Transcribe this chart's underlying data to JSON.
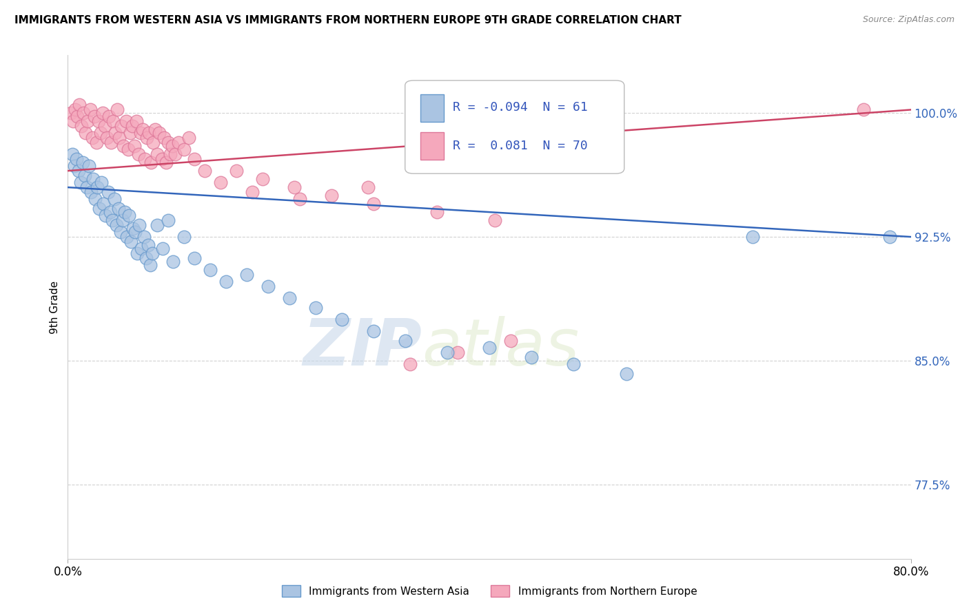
{
  "title": "IMMIGRANTS FROM WESTERN ASIA VS IMMIGRANTS FROM NORTHERN EUROPE 9TH GRADE CORRELATION CHART",
  "source": "Source: ZipAtlas.com",
  "ylabel": "9th Grade",
  "ytick_values": [
    77.5,
    85.0,
    92.5,
    100.0
  ],
  "xlim": [
    0.0,
    80.0
  ],
  "ylim": [
    73.0,
    103.5
  ],
  "r_blue": -0.094,
  "n_blue": 61,
  "r_pink": 0.081,
  "n_pink": 70,
  "legend_label_blue": "Immigrants from Western Asia",
  "legend_label_pink": "Immigrants from Northern Europe",
  "blue_color": "#aac4e2",
  "pink_color": "#f5a8bc",
  "blue_line_color": "#3366bb",
  "pink_line_color": "#cc4466",
  "blue_edge_color": "#6699cc",
  "pink_edge_color": "#dd7799",
  "watermark_zip": "ZIP",
  "watermark_atlas": "atlas",
  "blue_scatter_x": [
    0.4,
    0.6,
    0.8,
    1.0,
    1.2,
    1.4,
    1.6,
    1.8,
    2.0,
    2.2,
    2.4,
    2.6,
    2.8,
    3.0,
    3.2,
    3.4,
    3.6,
    3.8,
    4.0,
    4.2,
    4.4,
    4.6,
    4.8,
    5.0,
    5.2,
    5.4,
    5.6,
    5.8,
    6.0,
    6.2,
    6.4,
    6.6,
    6.8,
    7.0,
    7.2,
    7.4,
    7.6,
    7.8,
    8.0,
    8.5,
    9.0,
    9.5,
    10.0,
    11.0,
    12.0,
    13.5,
    15.0,
    17.0,
    19.0,
    21.0,
    23.5,
    26.0,
    29.0,
    32.0,
    36.0,
    40.0,
    44.0,
    48.0,
    53.0,
    65.0,
    78.0
  ],
  "blue_scatter_y": [
    97.5,
    96.8,
    97.2,
    96.5,
    95.8,
    97.0,
    96.2,
    95.5,
    96.8,
    95.2,
    96.0,
    94.8,
    95.5,
    94.2,
    95.8,
    94.5,
    93.8,
    95.2,
    94.0,
    93.5,
    94.8,
    93.2,
    94.2,
    92.8,
    93.5,
    94.0,
    92.5,
    93.8,
    92.2,
    93.0,
    92.8,
    91.5,
    93.2,
    91.8,
    92.5,
    91.2,
    92.0,
    90.8,
    91.5,
    93.2,
    91.8,
    93.5,
    91.0,
    92.5,
    91.2,
    90.5,
    89.8,
    90.2,
    89.5,
    88.8,
    88.2,
    87.5,
    86.8,
    86.2,
    85.5,
    85.8,
    85.2,
    84.8,
    84.2,
    92.5,
    92.5
  ],
  "pink_scatter_x": [
    0.3,
    0.5,
    0.7,
    0.9,
    1.1,
    1.3,
    1.5,
    1.7,
    1.9,
    2.1,
    2.3,
    2.5,
    2.7,
    2.9,
    3.1,
    3.3,
    3.5,
    3.7,
    3.9,
    4.1,
    4.3,
    4.5,
    4.7,
    4.9,
    5.1,
    5.3,
    5.5,
    5.7,
    5.9,
    6.1,
    6.3,
    6.5,
    6.7,
    6.9,
    7.1,
    7.3,
    7.5,
    7.7,
    7.9,
    8.1,
    8.3,
    8.5,
    8.7,
    8.9,
    9.1,
    9.3,
    9.5,
    9.7,
    9.9,
    10.2,
    10.5,
    11.0,
    11.5,
    12.0,
    13.0,
    14.5,
    16.0,
    18.5,
    21.5,
    25.0,
    28.5,
    32.5,
    37.0,
    42.0,
    17.5,
    22.0,
    29.0,
    35.0,
    40.5,
    75.5
  ],
  "pink_scatter_y": [
    100.0,
    99.5,
    100.2,
    99.8,
    100.5,
    99.2,
    100.0,
    98.8,
    99.5,
    100.2,
    98.5,
    99.8,
    98.2,
    99.5,
    98.8,
    100.0,
    99.2,
    98.5,
    99.8,
    98.2,
    99.5,
    98.8,
    100.2,
    98.5,
    99.2,
    98.0,
    99.5,
    97.8,
    98.8,
    99.2,
    98.0,
    99.5,
    97.5,
    98.8,
    99.0,
    97.2,
    98.5,
    98.8,
    97.0,
    98.2,
    99.0,
    97.5,
    98.8,
    97.2,
    98.5,
    97.0,
    98.2,
    97.5,
    98.0,
    97.5,
    98.2,
    97.8,
    98.5,
    97.2,
    96.5,
    95.8,
    96.5,
    96.0,
    95.5,
    95.0,
    95.5,
    84.8,
    85.5,
    86.2,
    95.2,
    94.8,
    94.5,
    94.0,
    93.5,
    100.2
  ]
}
